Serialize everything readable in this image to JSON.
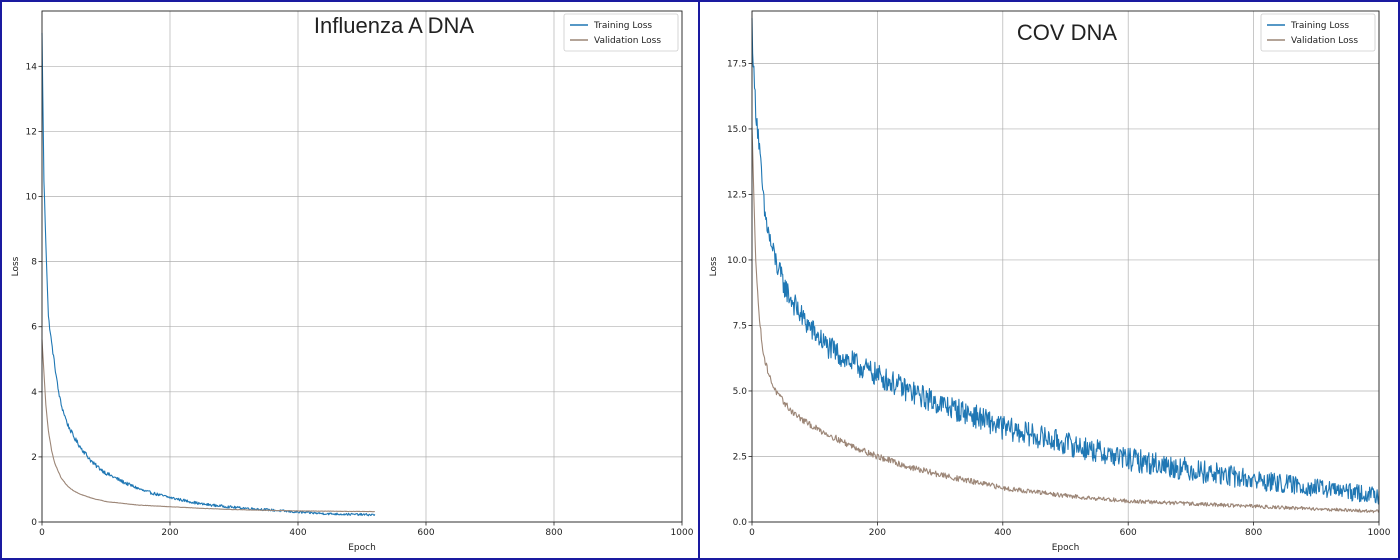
{
  "colors": {
    "frame": "#1a1aa0",
    "training": "#1f77b4",
    "validation": "#9c8677",
    "grid": "#b0b0b0"
  },
  "chart_data": [
    {
      "type": "line",
      "title": "Influenza A DNA",
      "xlabel": "Epoch",
      "ylabel": "Loss",
      "xlim": [
        0,
        1000
      ],
      "ylim": [
        0,
        15.7
      ],
      "xticks": [
        0,
        200,
        400,
        600,
        800,
        1000
      ],
      "yticks": [
        0,
        2,
        4,
        6,
        8,
        10,
        12,
        14
      ],
      "grid": true,
      "legend_position": "top-right",
      "series": [
        {
          "name": "Training Loss",
          "color": "#1f77b4",
          "noise": 0.07,
          "x": [
            0,
            3,
            6,
            10,
            15,
            20,
            25,
            30,
            40,
            50,
            60,
            80,
            100,
            130,
            160,
            200,
            250,
            300,
            350,
            400,
            450,
            520
          ],
          "y": [
            15.0,
            10.5,
            8.6,
            6.3,
            5.5,
            4.8,
            4.1,
            3.6,
            3.0,
            2.6,
            2.3,
            1.8,
            1.5,
            1.2,
            0.95,
            0.75,
            0.55,
            0.45,
            0.38,
            0.3,
            0.25,
            0.22
          ]
        },
        {
          "name": "Validation Loss",
          "color": "#9c8677",
          "noise": 0.01,
          "x": [
            0,
            3,
            6,
            10,
            15,
            20,
            30,
            40,
            50,
            60,
            80,
            100,
            150,
            200,
            250,
            300,
            400,
            520
          ],
          "y": [
            5.6,
            4.6,
            3.6,
            2.8,
            2.2,
            1.8,
            1.35,
            1.1,
            0.95,
            0.85,
            0.72,
            0.63,
            0.52,
            0.47,
            0.42,
            0.38,
            0.34,
            0.32
          ]
        }
      ]
    },
    {
      "type": "line",
      "title": "COV DNA",
      "xlabel": "Epoch",
      "ylabel": "Loss",
      "xlim": [
        0,
        1000
      ],
      "ylim": [
        0,
        19.5
      ],
      "xticks": [
        0,
        200,
        400,
        600,
        800,
        1000
      ],
      "yticks": [
        0,
        2.5,
        5,
        7.5,
        10,
        12.5,
        15,
        17.5
      ],
      "yticklabels": [
        "0.0",
        "2.5",
        "5.0",
        "7.5",
        "10.0",
        "12.5",
        "15.0",
        "17.5"
      ],
      "grid": true,
      "legend_position": "top-right",
      "series": [
        {
          "name": "Training Loss",
          "color": "#1f77b4",
          "noise": 0.45,
          "x": [
            0,
            3,
            6,
            10,
            15,
            20,
            30,
            40,
            50,
            60,
            80,
            100,
            120,
            150,
            200,
            250,
            300,
            350,
            400,
            450,
            500,
            550,
            600,
            650,
            700,
            800,
            900,
            1000
          ],
          "y": [
            19.0,
            17.0,
            15.8,
            14.8,
            13.2,
            11.8,
            10.6,
            9.8,
            9.1,
            8.6,
            7.8,
            7.2,
            6.7,
            6.2,
            5.6,
            5.0,
            4.5,
            4.1,
            3.6,
            3.3,
            3.0,
            2.7,
            2.4,
            2.2,
            2.0,
            1.6,
            1.3,
            1.0
          ]
        },
        {
          "name": "Validation Loss",
          "color": "#9c8677",
          "noise": 0.12,
          "x": [
            0,
            3,
            6,
            10,
            15,
            20,
            30,
            40,
            50,
            60,
            80,
            100,
            150,
            200,
            250,
            300,
            400,
            500,
            600,
            700,
            800,
            900,
            1000
          ],
          "y": [
            15.0,
            12.5,
            10.0,
            8.3,
            7.0,
            6.2,
            5.4,
            4.9,
            4.6,
            4.3,
            3.9,
            3.6,
            3.0,
            2.5,
            2.1,
            1.8,
            1.3,
            1.0,
            0.8,
            0.7,
            0.6,
            0.5,
            0.4
          ]
        }
      ]
    }
  ]
}
